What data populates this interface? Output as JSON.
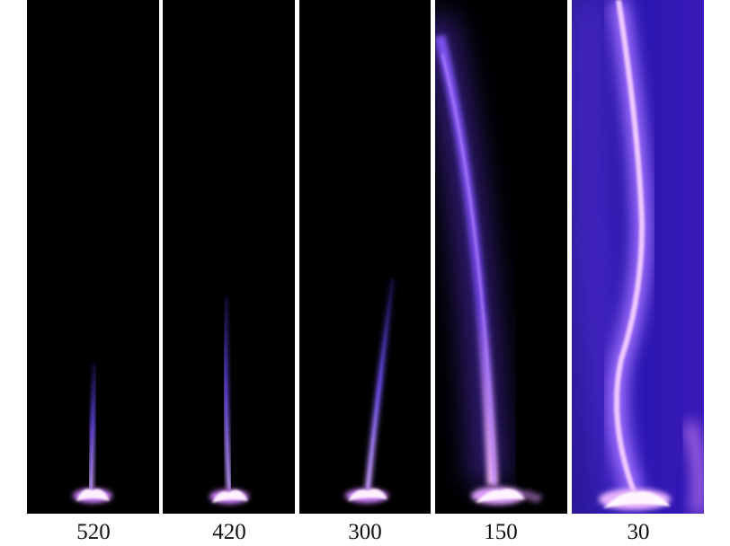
{
  "panels": [
    {
      "label": "520"
    },
    {
      "label": "420"
    },
    {
      "label": "300"
    },
    {
      "label": "150"
    },
    {
      "label": "30"
    }
  ]
}
